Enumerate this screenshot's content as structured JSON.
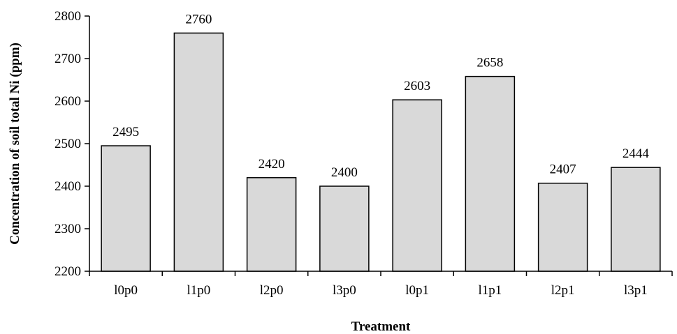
{
  "chart_data": {
    "type": "bar",
    "title": "",
    "xlabel": "Treatment",
    "ylabel": "Concentration of soil total Ni (ppm)",
    "categories": [
      "l0p0",
      "l1p0",
      "l2p0",
      "l3p0",
      "l0p1",
      "l1p1",
      "l2p1",
      "l3p1"
    ],
    "values": [
      2495,
      2760,
      2420,
      2400,
      2603,
      2658,
      2407,
      2444
    ],
    "data_labels": [
      "2495",
      "2760",
      "2420",
      "2400",
      "2603",
      "2658",
      "2407",
      "2444"
    ],
    "ylim": [
      2200,
      2800
    ],
    "yticks": [
      2200,
      2300,
      2400,
      2500,
      2600,
      2700,
      2800
    ],
    "ytick_labels": [
      "2200",
      "2300",
      "2400",
      "2500",
      "2600",
      "2700",
      "2800"
    ],
    "grid": false,
    "legend": "none",
    "colors": {
      "bar_fill": "#d9d9d9",
      "bar_stroke": "#000000",
      "axis": "#000000"
    }
  }
}
